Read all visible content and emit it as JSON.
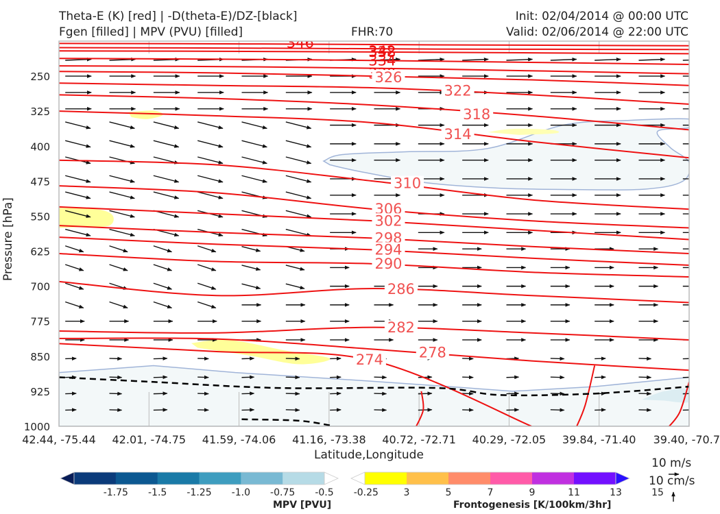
{
  "header": {
    "title_line1": "Theta-E (K) [red] | -D(theta-E)/DZ-[black]",
    "title_line2": "Fgen [filled] | MPV (PVU) [filled]",
    "fhr": "FHR:70",
    "init": "Init: 02/04/2014 @ 00:00 UTC",
    "valid": "Valid: 02/06/2014 @ 22:00 UTC"
  },
  "chart_data": {
    "type": "cross-section",
    "xlabel": "Latitude,Longitude",
    "ylabel": "Pressure [hPa]",
    "x_tick_labels": [
      "42.44, -75.44",
      "42.01, -74.75",
      "41.59, -74.06",
      "41.16, -73.38",
      "40.72, -72.71",
      "40.29, -72.05",
      "39.84, -71.40",
      "39.40, -70.7"
    ],
    "y_ticks": [
      250,
      325,
      400,
      475,
      550,
      625,
      700,
      775,
      850,
      925,
      1000
    ],
    "y_range": [
      1000,
      175
    ],
    "theta_e_contours": [
      {
        "label": "346",
        "points": [
          [
            0,
            180
          ],
          [
            0.3,
            181
          ],
          [
            0.6,
            183
          ],
          [
            1,
            185
          ]
        ]
      },
      {
        "label": "342",
        "points": [
          [
            0,
            189
          ],
          [
            0.3,
            190
          ],
          [
            0.6,
            192
          ],
          [
            1,
            193
          ]
        ]
      },
      {
        "label": "338",
        "points": [
          [
            0,
            196
          ],
          [
            0.3,
            197
          ],
          [
            0.6,
            199
          ],
          [
            1,
            202
          ]
        ]
      },
      {
        "label": "334",
        "points": [
          [
            0,
            212
          ],
          [
            0.3,
            214
          ],
          [
            0.6,
            218
          ],
          [
            1,
            225
          ]
        ]
      },
      {
        "label": "330",
        "points": [
          [
            0,
            228
          ],
          [
            0.3,
            230
          ],
          [
            0.6,
            235
          ],
          [
            1,
            245
          ]
        ]
      },
      {
        "label": "326",
        "points": [
          [
            0,
            240
          ],
          [
            0.25,
            243
          ],
          [
            0.5,
            250
          ],
          [
            0.75,
            258
          ],
          [
            1,
            270
          ]
        ]
      },
      {
        "label": "322",
        "points": [
          [
            0,
            265
          ],
          [
            0.25,
            270
          ],
          [
            0.5,
            275
          ],
          [
            0.75,
            290
          ],
          [
            1,
            310
          ]
        ]
      },
      {
        "label": "318",
        "points": [
          [
            0,
            290
          ],
          [
            0.25,
            298
          ],
          [
            0.5,
            312
          ],
          [
            0.75,
            335
          ],
          [
            1,
            365
          ]
        ]
      },
      {
        "label": "314",
        "points": [
          [
            0,
            325
          ],
          [
            0.25,
            335
          ],
          [
            0.5,
            350
          ],
          [
            0.75,
            390
          ],
          [
            1,
            425
          ]
        ]
      },
      {
        "label": "310",
        "points": [
          [
            0,
            430
          ],
          [
            0.25,
            440
          ],
          [
            0.5,
            475
          ],
          [
            0.75,
            515
          ],
          [
            1,
            535
          ]
        ]
      },
      {
        "label": "306",
        "points": [
          [
            0,
            485
          ],
          [
            0.25,
            500
          ],
          [
            0.5,
            535
          ],
          [
            0.75,
            560
          ],
          [
            1,
            575
          ]
        ]
      },
      {
        "label": "302",
        "points": [
          [
            0,
            530
          ],
          [
            0.25,
            545
          ],
          [
            0.5,
            560
          ],
          [
            0.75,
            580
          ],
          [
            1,
            600
          ]
        ]
      },
      {
        "label": "298",
        "points": [
          [
            0,
            570
          ],
          [
            0.25,
            585
          ],
          [
            0.5,
            597
          ],
          [
            0.75,
            615
          ],
          [
            1,
            630
          ]
        ]
      },
      {
        "label": "294",
        "points": [
          [
            0,
            595
          ],
          [
            0.25,
            610
          ],
          [
            0.5,
            622
          ],
          [
            0.75,
            640
          ],
          [
            1,
            655
          ]
        ]
      },
      {
        "label": "290",
        "points": [
          [
            0,
            630
          ],
          [
            0.25,
            647
          ],
          [
            0.5,
            652
          ],
          [
            0.75,
            670
          ],
          [
            1,
            680
          ]
        ]
      },
      {
        "label": "286",
        "points": [
          [
            0,
            690
          ],
          [
            0.25,
            720
          ],
          [
            0.5,
            705
          ],
          [
            0.75,
            720
          ],
          [
            1,
            735
          ]
        ]
      },
      {
        "label": "282",
        "points": [
          [
            0,
            796
          ],
          [
            0.25,
            800
          ],
          [
            0.5,
            788
          ],
          [
            0.75,
            800
          ],
          [
            1,
            815
          ]
        ]
      },
      {
        "label": "278",
        "points": [
          [
            0,
            812
          ],
          [
            0.25,
            813
          ],
          [
            0.5,
            835
          ],
          [
            0.75,
            860
          ],
          [
            1,
            880
          ]
        ]
      },
      {
        "label": "274",
        "points": [
          [
            0,
            823
          ],
          [
            0.25,
            840
          ],
          [
            0.5,
            860
          ],
          [
            0.75,
            1000
          ]
        ]
      }
    ],
    "zero_contour_dashed": [
      [
        0,
        895
      ],
      [
        0.15,
        905
      ],
      [
        0.35,
        918
      ],
      [
        0.6,
        918
      ],
      [
        0.7,
        933
      ],
      [
        0.85,
        930
      ],
      [
        1,
        915
      ]
    ],
    "colorbar_mpv": {
      "title": "MPV [PVU]",
      "ticks": [
        "-1.75",
        "-1.5",
        "-1.25",
        "-1.0",
        "-0.75",
        "-0.5",
        "-0.25"
      ],
      "colors": [
        "#081d58",
        "#0b3b7a",
        "#0c5891",
        "#1a7aa7",
        "#3e9dbf",
        "#79b9d3",
        "#b6dbe6",
        "#ffffff"
      ]
    },
    "colorbar_fgen": {
      "title": "Frontogenesis [K/100km/3hr]",
      "ticks": [
        "3",
        "5",
        "7",
        "9",
        "11",
        "13",
        "15"
      ],
      "colors": [
        "#ffffff",
        "#ffff00",
        "#ffc04a",
        "#ff8c6a",
        "#ff5ba8",
        "#c030e0",
        "#7310ff",
        "#2b10ff"
      ]
    },
    "reference_vector": {
      "horizontal": "10 m/s",
      "vertical": "10 cm/s"
    }
  }
}
